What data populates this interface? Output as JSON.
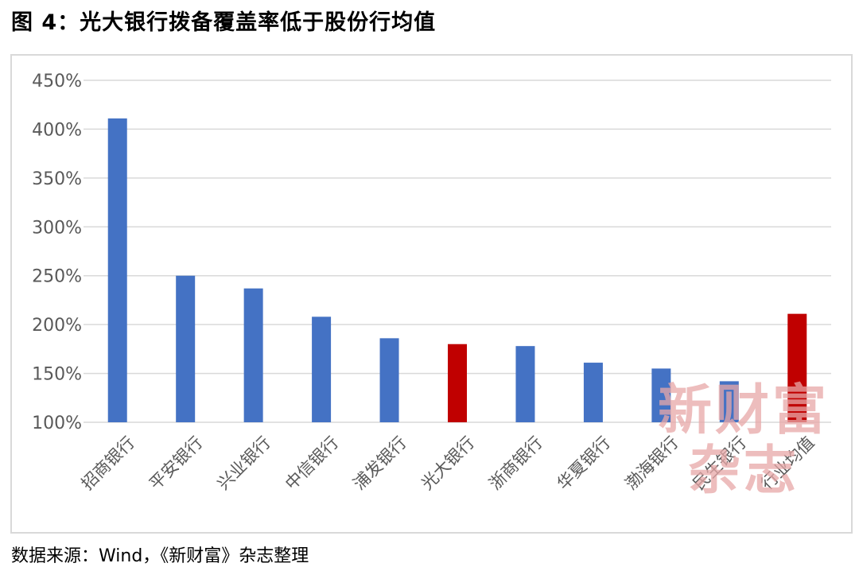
{
  "figure": {
    "title": "图 4：光大银行拨备覆盖率低于股份行均值",
    "source": "数据来源：Wind，《新财富》杂志整理",
    "watermark": {
      "line1": "新财富",
      "line2": "杂志"
    }
  },
  "colors": {
    "default_bar": "#4472c4",
    "highlight_bar": "#c00000",
    "gridline": "#d9d9d9",
    "tick_text": "#595959"
  },
  "chart_data": {
    "type": "bar",
    "title": "",
    "xlabel": "",
    "ylabel": "",
    "ylim": [
      1.0,
      4.5
    ],
    "y_ticks": [
      1.0,
      1.5,
      2.0,
      2.5,
      3.0,
      3.5,
      4.0,
      4.5
    ],
    "y_tick_labels": [
      "100%",
      "150%",
      "200%",
      "250%",
      "300%",
      "350%",
      "400%",
      "450%"
    ],
    "grid": true,
    "categories": [
      "招商银行",
      "平安银行",
      "兴业银行",
      "中信银行",
      "浦发银行",
      "光大银行",
      "浙商银行",
      "华夏银行",
      "渤海银行",
      "民生银行",
      "行业均值"
    ],
    "values": [
      4.11,
      2.5,
      2.37,
      2.08,
      1.86,
      1.8,
      1.78,
      1.61,
      1.55,
      1.42,
      2.11
    ],
    "highlighted": [
      "光大银行",
      "行业均值"
    ]
  }
}
